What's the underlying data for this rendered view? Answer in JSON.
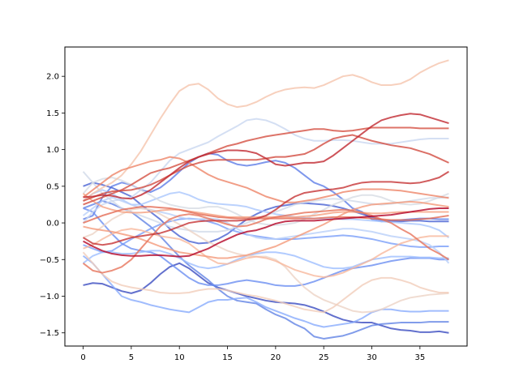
{
  "chart_data": {
    "type": "line",
    "title": "",
    "xlabel": "",
    "ylabel": "",
    "xlim": [
      -1.9,
      39.9
    ],
    "ylim": [
      -1.68,
      2.4
    ],
    "x_ticks": [
      0,
      5,
      10,
      15,
      20,
      25,
      30,
      35
    ],
    "y_ticks": [
      -1.5,
      -1.0,
      -0.5,
      0.0,
      0.5,
      1.0,
      1.5,
      2.0
    ],
    "x_tick_labels": [
      "0",
      "5",
      "10",
      "15",
      "20",
      "25",
      "30",
      "35"
    ],
    "y_tick_labels": [
      "−1.5",
      "−1.0",
      "−0.5",
      "0.0",
      "0.5",
      "1.0",
      "1.5",
      "2.0"
    ],
    "grid": false,
    "colormap": "coolwarm",
    "series": [
      {
        "color": "#3b4cc0",
        "values": [
          -0.85,
          -0.82,
          -0.83,
          -0.88,
          -0.93,
          -0.96,
          -0.92,
          -0.82,
          -0.7,
          -0.6,
          -0.55,
          -0.62,
          -0.72,
          -0.82,
          -0.88,
          -0.92,
          -0.96,
          -1.0,
          -1.03,
          -1.06,
          -1.08,
          -1.09,
          -1.1,
          -1.12,
          -1.16,
          -1.21,
          -1.27,
          -1.32,
          -1.35,
          -1.36,
          -1.36,
          -1.4,
          -1.44,
          -1.46,
          -1.47,
          -1.49,
          -1.49,
          -1.48,
          -1.5
        ]
      },
      {
        "color": "#6283e5",
        "values": [
          0.2,
          0.25,
          0.3,
          0.26,
          0.2,
          0.15,
          0.05,
          -0.05,
          -0.18,
          -0.32,
          -0.46,
          -0.58,
          -0.68,
          -0.78,
          -0.9,
          -1.0,
          -1.06,
          -1.08,
          -1.1,
          -1.18,
          -1.25,
          -1.3,
          -1.38,
          -1.44,
          -1.55,
          -1.58,
          -1.56,
          -1.54,
          -1.5,
          -1.45,
          -1.4,
          -1.38,
          -1.37,
          -1.36,
          -1.36,
          -1.36,
          -1.35,
          -1.35,
          -1.35
        ]
      },
      {
        "color": "#88abfd",
        "values": [
          -0.45,
          -0.55,
          -0.7,
          -0.85,
          -1.0,
          -1.05,
          -1.08,
          -1.12,
          -1.15,
          -1.18,
          -1.2,
          -1.22,
          -1.15,
          -1.08,
          -1.05,
          -1.05,
          -1.03,
          -1.02,
          -1.08,
          -1.15,
          -1.2,
          -1.25,
          -1.3,
          -1.34,
          -1.39,
          -1.42,
          -1.4,
          -1.38,
          -1.36,
          -1.3,
          -1.22,
          -1.18,
          -1.18,
          -1.2,
          -1.21,
          -1.21,
          -1.2,
          -1.2,
          -1.2
        ]
      },
      {
        "color": "#5e7de7",
        "values": [
          0.05,
          0.1,
          0.35,
          0.5,
          0.55,
          0.52,
          0.45,
          0.42,
          0.48,
          0.58,
          0.7,
          0.82,
          0.9,
          0.95,
          0.93,
          0.85,
          0.8,
          0.78,
          0.8,
          0.83,
          0.85,
          0.82,
          0.75,
          0.65,
          0.55,
          0.5,
          0.42,
          0.32,
          0.2,
          0.15,
          0.05,
          0.02,
          0.03,
          0.04,
          0.05,
          0.06,
          0.06,
          0.05,
          0.05
        ]
      },
      {
        "color": "#4a63d3",
        "values": [
          0.5,
          0.55,
          0.52,
          0.48,
          0.42,
          0.36,
          0.25,
          0.15,
          0.05,
          -0.08,
          -0.18,
          -0.25,
          -0.28,
          -0.27,
          -0.22,
          -0.15,
          -0.05,
          0.05,
          0.12,
          0.18,
          0.22,
          0.24,
          0.26,
          0.27,
          0.26,
          0.25,
          0.23,
          0.2,
          0.16,
          0.12,
          0.08,
          0.04,
          0.02,
          0.02,
          0.03,
          0.03,
          0.02,
          0.02,
          0.02
        ]
      },
      {
        "color": "#7b9ff9",
        "values": [
          -0.3,
          -0.35,
          -0.4,
          -0.38,
          -0.3,
          -0.22,
          -0.15,
          -0.08,
          -0.02,
          0.02,
          0.05,
          0.06,
          0.05,
          0.02,
          -0.02,
          -0.08,
          -0.12,
          -0.16,
          -0.18,
          -0.2,
          -0.22,
          -0.22,
          -0.22,
          -0.21,
          -0.2,
          -0.19,
          -0.18,
          -0.17,
          -0.18,
          -0.2,
          -0.22,
          -0.25,
          -0.28,
          -0.3,
          -0.32,
          -0.33,
          -0.33,
          -0.32,
          -0.32
        ]
      },
      {
        "color": "#6c8ff1",
        "values": [
          0.2,
          0.15,
          0.0,
          -0.15,
          -0.28,
          -0.35,
          -0.38,
          -0.4,
          -0.45,
          -0.55,
          -0.65,
          -0.75,
          -0.82,
          -0.85,
          -0.85,
          -0.83,
          -0.8,
          -0.78,
          -0.8,
          -0.82,
          -0.85,
          -0.86,
          -0.86,
          -0.84,
          -0.8,
          -0.75,
          -0.7,
          -0.65,
          -0.62,
          -0.6,
          -0.58,
          -0.55,
          -0.52,
          -0.5,
          -0.48,
          -0.48,
          -0.48,
          -0.5,
          -0.5
        ]
      },
      {
        "color": "#9ebeff",
        "values": [
          -0.55,
          -0.45,
          -0.4,
          -0.4,
          -0.42,
          -0.42,
          -0.4,
          -0.38,
          -0.38,
          -0.42,
          -0.48,
          -0.55,
          -0.6,
          -0.62,
          -0.6,
          -0.56,
          -0.5,
          -0.45,
          -0.42,
          -0.4,
          -0.4,
          -0.42,
          -0.45,
          -0.5,
          -0.55,
          -0.6,
          -0.62,
          -0.62,
          -0.6,
          -0.55,
          -0.5,
          -0.48,
          -0.46,
          -0.46,
          -0.46,
          -0.47,
          -0.47,
          -0.48,
          -0.48
        ]
      },
      {
        "color": "#aac7fd",
        "values": [
          0.3,
          0.4,
          0.45,
          0.4,
          0.32,
          0.25,
          0.25,
          0.3,
          0.35,
          0.4,
          0.42,
          0.38,
          0.32,
          0.28,
          0.26,
          0.25,
          0.24,
          0.22,
          0.18,
          0.15,
          0.12,
          0.1,
          0.08,
          0.07,
          0.06,
          0.06,
          0.06,
          0.05,
          0.05,
          0.04,
          0.03,
          0.02,
          0.01,
          0.0,
          -0.01,
          -0.02,
          -0.05,
          -0.1,
          -0.2
        ]
      },
      {
        "color": "#b9d0f9",
        "values": [
          0.1,
          0.2,
          0.3,
          0.35,
          0.3,
          0.25,
          0.2,
          0.18,
          0.15,
          0.12,
          0.08,
          0.05,
          0.05,
          0.06,
          0.05,
          0.0,
          -0.08,
          -0.15,
          -0.2,
          -0.22,
          -0.22,
          -0.2,
          -0.18,
          -0.16,
          -0.14,
          -0.12,
          -0.1,
          -0.08,
          -0.08,
          -0.1,
          -0.12,
          -0.15,
          -0.18,
          -0.2,
          -0.22,
          -0.25,
          -0.3,
          -0.4,
          -0.55
        ]
      },
      {
        "color": "#c9d7f0",
        "values": [
          0.0,
          0.15,
          0.25,
          0.3,
          0.32,
          0.35,
          0.45,
          0.55,
          0.7,
          0.85,
          0.95,
          1.0,
          1.05,
          1.1,
          1.18,
          1.25,
          1.32,
          1.4,
          1.42,
          1.4,
          1.35,
          1.28,
          1.2,
          1.15,
          1.12,
          1.12,
          1.13,
          1.13,
          1.12,
          1.1,
          1.08,
          1.08,
          1.08,
          1.1,
          1.12,
          1.14,
          1.15,
          1.15,
          1.15
        ]
      },
      {
        "color": "#d1dae9",
        "values": [
          0.7,
          0.55,
          0.4,
          0.3,
          0.2,
          0.15,
          0.1,
          0.05,
          0.0,
          -0.05,
          -0.08,
          -0.1,
          -0.12,
          -0.12,
          -0.12,
          -0.1,
          -0.05,
          0.0,
          0.05,
          0.1,
          0.15,
          0.2,
          0.25,
          0.28,
          0.3,
          0.32,
          0.33,
          0.32,
          0.3,
          0.28,
          0.26,
          0.25,
          0.26,
          0.28,
          0.3,
          0.32,
          0.34,
          0.34,
          0.35
        ]
      },
      {
        "color": "#d7dce3",
        "values": [
          0.4,
          0.55,
          0.6,
          0.62,
          0.58,
          0.52,
          0.45,
          0.38,
          0.3,
          0.25,
          0.22,
          0.2,
          0.2,
          0.22,
          0.22,
          0.18,
          0.12,
          0.05,
          0.0,
          -0.02,
          -0.03,
          -0.02,
          0.0,
          0.05,
          0.12,
          0.18,
          0.25,
          0.3,
          0.35,
          0.38,
          0.38,
          0.35,
          0.3,
          0.26,
          0.25,
          0.26,
          0.3,
          0.35,
          0.4
        ]
      },
      {
        "color": "#ecd3c5",
        "values": [
          -0.2,
          -0.15,
          -0.05,
          0.05,
          0.12,
          0.18,
          0.2,
          0.18,
          0.12,
          0.05,
          -0.02,
          -0.1,
          -0.18,
          -0.26,
          -0.32,
          -0.38,
          -0.42,
          -0.45,
          -0.46,
          -0.46,
          -0.5,
          -0.6,
          -0.75,
          -0.88,
          -0.98,
          -1.05,
          -1.1,
          -1.15,
          -1.2,
          -1.22,
          -1.21,
          -1.18,
          -1.12,
          -1.06,
          -1.02,
          -1.0,
          -0.98,
          -0.97,
          -0.96
        ]
      },
      {
        "color": "#f1cdba",
        "values": [
          -0.4,
          -0.55,
          -0.7,
          -0.8,
          -0.85,
          -0.88,
          -0.9,
          -0.92,
          -0.95,
          -0.96,
          -0.96,
          -0.95,
          -0.92,
          -0.9,
          -0.9,
          -0.92,
          -0.95,
          -0.98,
          -1.0,
          -1.03,
          -1.06,
          -1.1,
          -1.14,
          -1.18,
          -1.2,
          -1.22,
          -1.15,
          -1.05,
          -0.95,
          -0.85,
          -0.78,
          -0.75,
          -0.75,
          -0.78,
          -0.82,
          -0.88,
          -0.92,
          -0.95,
          -0.95
        ]
      },
      {
        "color": "#f5c4ac",
        "values": [
          0.3,
          0.4,
          0.48,
          0.55,
          0.65,
          0.8,
          0.98,
          1.2,
          1.42,
          1.62,
          1.8,
          1.88,
          1.9,
          1.82,
          1.7,
          1.62,
          1.58,
          1.6,
          1.65,
          1.72,
          1.78,
          1.82,
          1.84,
          1.85,
          1.84,
          1.88,
          1.94,
          2.0,
          2.02,
          1.98,
          1.92,
          1.88,
          1.88,
          1.9,
          1.96,
          2.05,
          2.12,
          2.18,
          2.22
        ]
      },
      {
        "color": "#f7b89c",
        "values": [
          -0.35,
          -0.3,
          -0.22,
          -0.15,
          -0.1,
          -0.08,
          -0.1,
          -0.14,
          -0.18,
          -0.2,
          -0.22,
          -0.28,
          -0.38,
          -0.48,
          -0.55,
          -0.56,
          -0.52,
          -0.48,
          -0.46,
          -0.48,
          -0.52,
          -0.58,
          -0.64,
          -0.68,
          -0.72,
          -0.74,
          -0.72,
          -0.68,
          -0.62,
          -0.56,
          -0.5,
          -0.42,
          -0.35,
          -0.28,
          -0.24,
          -0.2,
          -0.18,
          -0.18,
          -0.18
        ]
      },
      {
        "color": "#f5a081",
        "values": [
          0.4,
          0.3,
          0.22,
          0.18,
          0.15,
          0.14,
          0.14,
          0.15,
          0.17,
          0.18,
          0.18,
          0.16,
          0.14,
          0.12,
          0.1,
          0.08,
          0.08,
          0.08,
          0.08,
          0.08,
          0.08,
          0.08,
          0.08,
          0.09,
          0.1,
          0.12,
          0.14,
          0.15,
          0.15,
          0.14,
          0.13,
          0.13,
          0.14,
          0.15,
          0.15,
          0.15,
          0.15,
          0.15,
          0.15
        ]
      },
      {
        "color": "#f49a7b",
        "values": [
          -0.05,
          -0.08,
          -0.1,
          -0.12,
          -0.15,
          -0.18,
          -0.22,
          -0.27,
          -0.32,
          -0.36,
          -0.4,
          -0.42,
          -0.44,
          -0.46,
          -0.48,
          -0.48,
          -0.46,
          -0.44,
          -0.4,
          -0.36,
          -0.32,
          -0.26,
          -0.2,
          -0.14,
          -0.08,
          -0.02,
          0.05,
          0.12,
          0.18,
          0.22,
          0.25,
          0.26,
          0.27,
          0.28,
          0.29,
          0.28,
          0.26,
          0.24,
          0.22
        ]
      },
      {
        "color": "#ee8468",
        "values": [
          0.35,
          0.45,
          0.55,
          0.65,
          0.72,
          0.76,
          0.8,
          0.84,
          0.86,
          0.9,
          0.88,
          0.82,
          0.74,
          0.66,
          0.6,
          0.56,
          0.52,
          0.48,
          0.42,
          0.36,
          0.32,
          0.28,
          0.28,
          0.3,
          0.32,
          0.35,
          0.38,
          0.42,
          0.44,
          0.46,
          0.46,
          0.46,
          0.45,
          0.44,
          0.42,
          0.4,
          0.38,
          0.36,
          0.34
        ]
      },
      {
        "color": "#e7745b",
        "values": [
          -0.55,
          -0.65,
          -0.68,
          -0.65,
          -0.6,
          -0.5,
          -0.35,
          -0.2,
          -0.05,
          0.05,
          0.1,
          0.12,
          0.1,
          0.06,
          0.02,
          -0.02,
          -0.05,
          -0.04,
          0.0,
          0.05,
          0.08,
          0.1,
          0.12,
          0.14,
          0.15,
          0.16,
          0.17,
          0.18,
          0.17,
          0.14,
          0.1,
          0.05,
          0.0,
          -0.08,
          -0.15,
          -0.25,
          -0.35,
          -0.42,
          -0.5
        ]
      },
      {
        "color": "#e36c55",
        "values": [
          0.0,
          0.05,
          0.1,
          0.14,
          0.18,
          0.2,
          0.22,
          0.22,
          0.21,
          0.2,
          0.18,
          0.15,
          0.12,
          0.1,
          0.08,
          0.07,
          0.06,
          0.06,
          0.06,
          0.06,
          0.06,
          0.06,
          0.06,
          0.06,
          0.06,
          0.07,
          0.08,
          0.08,
          0.08,
          0.07,
          0.06,
          0.05,
          0.04,
          0.04,
          0.04,
          0.05,
          0.06,
          0.08,
          0.1
        ]
      },
      {
        "color": "#d55042",
        "values": [
          0.25,
          0.3,
          0.35,
          0.4,
          0.45,
          0.52,
          0.6,
          0.68,
          0.72,
          0.75,
          0.8,
          0.85,
          0.9,
          0.95,
          1.0,
          1.05,
          1.08,
          1.12,
          1.15,
          1.18,
          1.2,
          1.22,
          1.24,
          1.26,
          1.28,
          1.28,
          1.26,
          1.25,
          1.26,
          1.28,
          1.3,
          1.3,
          1.3,
          1.3,
          1.3,
          1.29,
          1.29,
          1.29,
          1.29
        ]
      },
      {
        "color": "#d24b40",
        "values": [
          0.3,
          0.35,
          0.4,
          0.43,
          0.44,
          0.45,
          0.48,
          0.52,
          0.58,
          0.65,
          0.72,
          0.78,
          0.82,
          0.85,
          0.86,
          0.86,
          0.86,
          0.86,
          0.86,
          0.88,
          0.9,
          0.9,
          0.92,
          0.94,
          1.0,
          1.08,
          1.15,
          1.18,
          1.2,
          1.16,
          1.12,
          1.09,
          1.06,
          1.04,
          1.02,
          0.98,
          0.94,
          0.88,
          0.82
        ]
      },
      {
        "color": "#c53334",
        "values": [
          -0.2,
          -0.28,
          -0.3,
          -0.28,
          -0.24,
          -0.2,
          -0.18,
          -0.16,
          -0.14,
          -0.1,
          -0.05,
          0.0,
          0.02,
          0.03,
          0.03,
          0.03,
          0.03,
          0.04,
          0.06,
          0.1,
          0.18,
          0.28,
          0.36,
          0.41,
          0.43,
          0.45,
          0.46,
          0.48,
          0.52,
          0.55,
          0.56,
          0.56,
          0.56,
          0.55,
          0.54,
          0.55,
          0.58,
          0.62,
          0.7
        ]
      },
      {
        "color": "#c0282f",
        "values": [
          0.35,
          0.36,
          0.38,
          0.37,
          0.34,
          0.33,
          0.38,
          0.45,
          0.55,
          0.65,
          0.75,
          0.84,
          0.9,
          0.94,
          0.97,
          0.99,
          0.99,
          0.98,
          0.95,
          0.88,
          0.8,
          0.78,
          0.8,
          0.82,
          0.82,
          0.84,
          0.92,
          1.02,
          1.12,
          1.22,
          1.32,
          1.4,
          1.44,
          1.47,
          1.49,
          1.48,
          1.44,
          1.4,
          1.36
        ]
      },
      {
        "color": "#b40426",
        "values": [
          -0.25,
          -0.32,
          -0.38,
          -0.42,
          -0.44,
          -0.45,
          -0.45,
          -0.44,
          -0.44,
          -0.45,
          -0.46,
          -0.45,
          -0.4,
          -0.35,
          -0.28,
          -0.22,
          -0.16,
          -0.12,
          -0.1,
          -0.06,
          -0.01,
          0.02,
          0.03,
          0.03,
          0.03,
          0.04,
          0.05,
          0.06,
          0.07,
          0.08,
          0.09,
          0.1,
          0.11,
          0.13,
          0.15,
          0.17,
          0.19,
          0.2,
          0.2
        ]
      }
    ]
  }
}
